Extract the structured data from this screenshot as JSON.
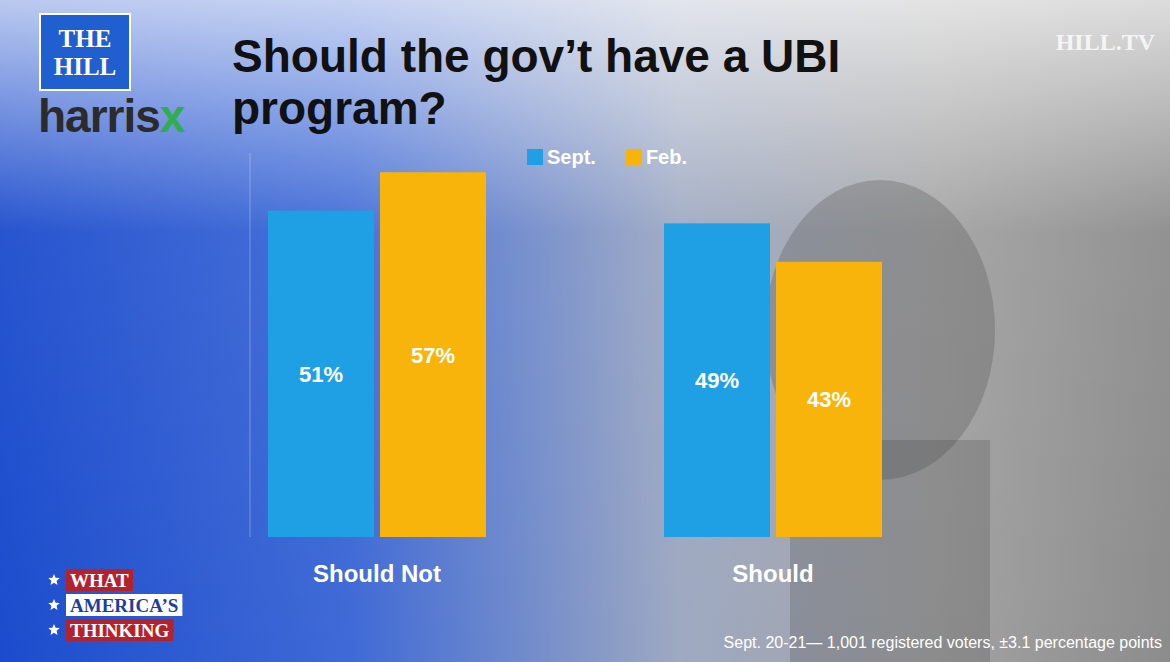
{
  "chart_data": {
    "type": "bar",
    "title": "Should the gov’t have a UBI program?",
    "categories": [
      "Should Not",
      "Should"
    ],
    "series": [
      {
        "name": "Sept.",
        "color": "#1f9fe4",
        "values": [
          51,
          49
        ],
        "value_labels": [
          "51%",
          "49%"
        ]
      },
      {
        "name": "Feb.",
        "color": "#f9b40b",
        "values": [
          57,
          43
        ],
        "value_labels": [
          "57%",
          "43%"
        ]
      }
    ],
    "ylim": [
      0,
      60
    ],
    "yticks": [],
    "grid": false,
    "legend": "top",
    "data_labels": true,
    "tick_labels": false,
    "annotations": [
      "THE HILL",
      "harrisx",
      "HILL.TV",
      "WHAT",
      "AMERICA’S",
      "THINKING",
      "Sept. 20-21— 1,001 registered voters, ±3.1 percentage points"
    ]
  }
}
